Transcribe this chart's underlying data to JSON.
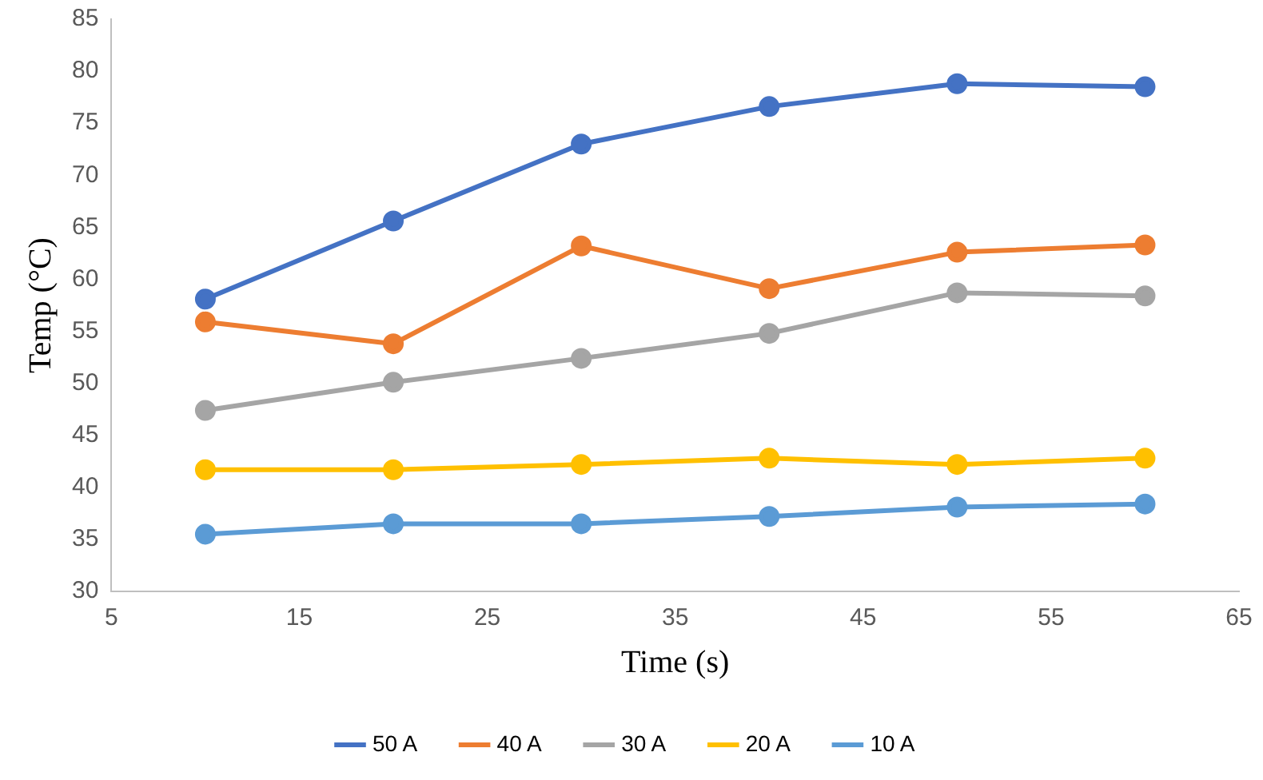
{
  "chart_data": {
    "type": "line",
    "xlabel": "Time (s)",
    "ylabel": "Temp (°C)",
    "x": [
      10,
      20,
      30,
      40,
      50,
      60
    ],
    "xlim": [
      5,
      65
    ],
    "xticks": [
      5,
      15,
      25,
      35,
      45,
      55,
      65
    ],
    "ylim": [
      30,
      85
    ],
    "yticks": [
      30,
      35,
      40,
      45,
      50,
      55,
      60,
      65,
      70,
      75,
      80,
      85
    ],
    "grid": false,
    "legend": "bottom",
    "marker": "circle",
    "series": [
      {
        "name": "50 A",
        "color": "#4472c4",
        "values": [
          58.1,
          65.6,
          73.0,
          76.6,
          78.8,
          78.5
        ]
      },
      {
        "name": "40 A",
        "color": "#ed7d31",
        "values": [
          55.9,
          53.8,
          63.2,
          59.1,
          62.6,
          63.3
        ]
      },
      {
        "name": "30 A",
        "color": "#a5a5a5",
        "values": [
          47.4,
          50.1,
          52.4,
          54.8,
          58.7,
          58.4
        ]
      },
      {
        "name": "20 A",
        "color": "#ffc000",
        "values": [
          41.7,
          41.7,
          42.2,
          42.8,
          42.2,
          42.8
        ]
      },
      {
        "name": "10 A",
        "color": "#5b9bd5",
        "values": [
          35.5,
          36.5,
          36.5,
          37.2,
          38.1,
          38.4
        ]
      }
    ]
  }
}
